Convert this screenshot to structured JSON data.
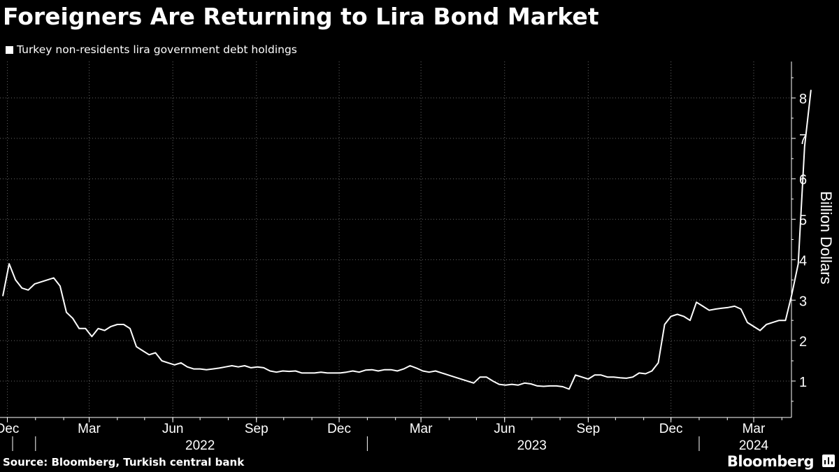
{
  "title": "Foreigners Are Returning to Lira Bond Market",
  "legend_label": "Turkey non-residents lira government debt holdings",
  "source": "Source: Bloomberg, Turkish central bank",
  "brand": "Bloomberg",
  "colors": {
    "background": "#000000",
    "line": "#ffffff",
    "grid": "#666666"
  },
  "chart_data": {
    "type": "line",
    "title": "Foreigners Are Returning to Lira Bond Market",
    "ylabel": "Billion Dollars",
    "xlabel": "",
    "ylim": [
      0.1,
      8.9
    ],
    "yticks": [
      1,
      2,
      3,
      4,
      5,
      6,
      7,
      8
    ],
    "x_start": "2021-11-26",
    "x_step_days": 7,
    "month_ticks": [
      {
        "label": "Dec",
        "date": "2021-12-01"
      },
      {
        "label": "Mar",
        "date": "2022-03-01"
      },
      {
        "label": "Jun",
        "date": "2022-06-01"
      },
      {
        "label": "Sep",
        "date": "2022-09-01"
      },
      {
        "label": "Dec",
        "date": "2022-12-01"
      },
      {
        "label": "Mar",
        "date": "2023-03-01"
      },
      {
        "label": "Jun",
        "date": "2023-06-01"
      },
      {
        "label": "Sep",
        "date": "2023-09-01"
      },
      {
        "label": "Dec",
        "date": "2023-12-01"
      },
      {
        "label": "Mar",
        "date": "2024-03-01"
      }
    ],
    "years": [
      {
        "label": "2022",
        "center": "2022-07-01",
        "start": "2022-01-01"
      },
      {
        "label": "2023",
        "center": "2023-07-01",
        "start": "2023-01-01"
      },
      {
        "label": "2024",
        "center": "2024-03-01",
        "start": "2024-01-01"
      }
    ],
    "grid": true,
    "series": [
      {
        "name": "Turkey non-residents lira government debt holdings",
        "values": [
          3.1,
          3.9,
          3.5,
          3.3,
          3.25,
          3.4,
          3.45,
          3.5,
          3.55,
          3.35,
          2.7,
          2.55,
          2.3,
          2.3,
          2.1,
          2.3,
          2.25,
          2.35,
          2.4,
          2.4,
          2.3,
          1.85,
          1.75,
          1.65,
          1.7,
          1.5,
          1.45,
          1.4,
          1.45,
          1.35,
          1.3,
          1.3,
          1.28,
          1.3,
          1.32,
          1.35,
          1.38,
          1.35,
          1.38,
          1.33,
          1.35,
          1.33,
          1.25,
          1.22,
          1.25,
          1.24,
          1.25,
          1.2,
          1.2,
          1.2,
          1.22,
          1.2,
          1.2,
          1.2,
          1.22,
          1.25,
          1.22,
          1.27,
          1.28,
          1.25,
          1.28,
          1.28,
          1.25,
          1.3,
          1.38,
          1.32,
          1.25,
          1.22,
          1.25,
          1.2,
          1.15,
          1.1,
          1.05,
          1.0,
          0.95,
          1.1,
          1.1,
          1.0,
          0.92,
          0.9,
          0.92,
          0.9,
          0.95,
          0.93,
          0.88,
          0.87,
          0.88,
          0.88,
          0.86,
          0.8,
          1.15,
          1.1,
          1.05,
          1.15,
          1.15,
          1.1,
          1.1,
          1.08,
          1.07,
          1.1,
          1.2,
          1.18,
          1.25,
          1.45,
          2.4,
          2.6,
          2.65,
          2.6,
          2.5,
          2.95,
          2.85,
          2.75,
          2.78,
          2.8,
          2.82,
          2.85,
          2.78,
          2.45,
          2.35,
          2.25,
          2.4,
          2.45,
          2.5,
          2.5,
          3.15,
          3.9,
          6.8,
          8.2
        ]
      }
    ]
  }
}
